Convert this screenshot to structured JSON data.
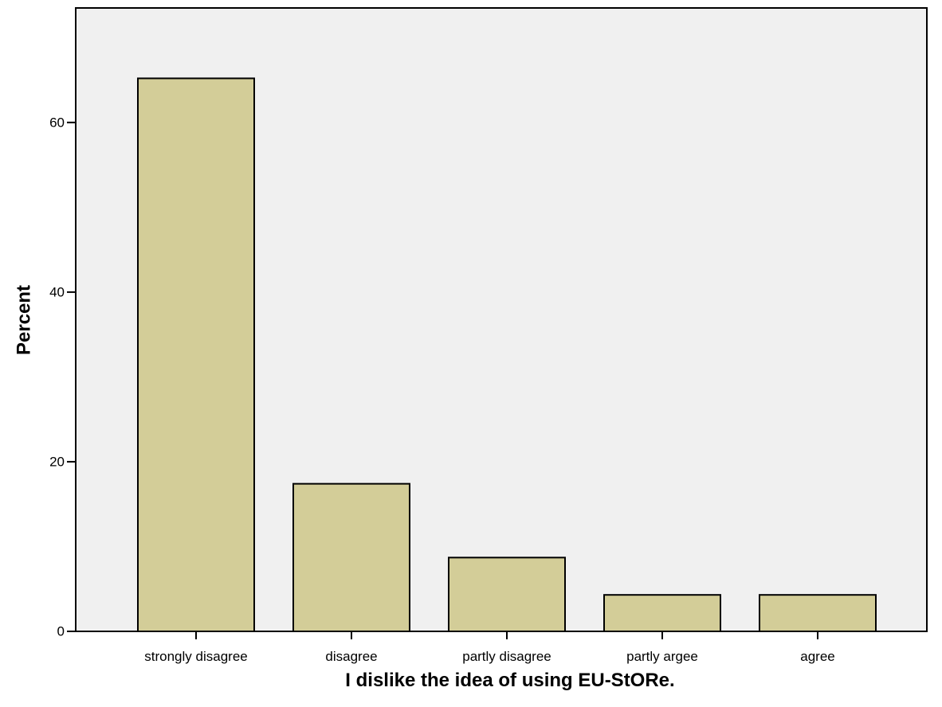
{
  "chart_data": {
    "type": "bar",
    "title": "",
    "xlabel": "I dislike the idea of using EU-StORe.",
    "ylabel": "Percent",
    "categories": [
      "strongly disagree",
      "disagree",
      "partly disagree",
      "partly argee",
      "agree"
    ],
    "values": [
      65.2,
      17.4,
      8.7,
      4.3,
      4.3
    ],
    "ylim": [
      0,
      73.5
    ],
    "yticks": [
      0,
      20,
      40,
      60
    ],
    "grid": false,
    "legend": "none",
    "colors": {
      "bar_fill": "#d3cd98",
      "bar_stroke": "#000000",
      "plot_background": "#f0f0f0",
      "axis": "#000000"
    }
  }
}
